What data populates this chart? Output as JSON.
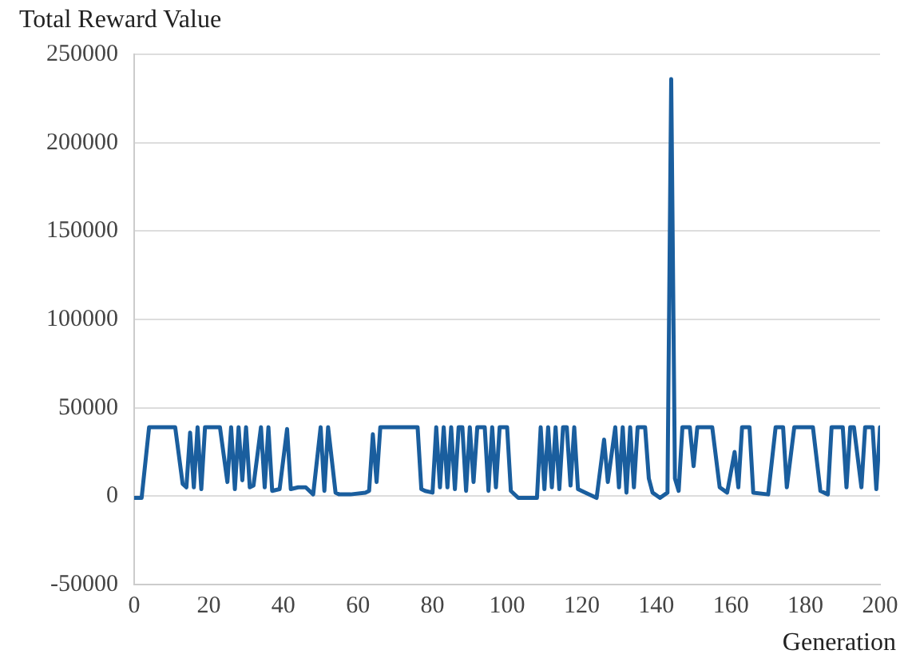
{
  "chart_data": {
    "type": "line",
    "xlabel": "Generation",
    "ylabel": "Total Reward Value",
    "x": [
      0,
      2,
      4,
      11,
      13,
      14,
      15,
      16,
      17,
      18,
      19,
      23,
      25,
      26,
      27,
      28,
      29,
      30,
      31,
      32,
      34,
      35,
      36,
      37,
      39,
      41,
      42,
      44,
      46,
      48,
      50,
      51,
      52,
      54,
      55,
      58,
      62,
      63,
      64,
      65,
      66,
      76,
      77,
      78,
      80,
      81,
      82,
      83,
      84,
      85,
      86,
      87,
      88,
      89,
      90,
      91,
      92,
      94,
      95,
      96,
      97,
      98,
      100,
      101,
      103,
      108,
      109,
      110,
      111,
      112,
      113,
      114,
      115,
      116,
      117,
      118,
      119,
      121,
      124,
      126,
      127,
      129,
      130,
      131,
      132,
      133,
      134,
      135,
      137,
      138,
      139,
      141,
      143,
      144,
      145,
      146,
      147,
      149,
      150,
      151,
      155,
      157,
      159,
      161,
      162,
      163,
      165,
      166,
      170,
      172,
      174,
      175,
      177,
      182,
      184,
      186,
      187,
      190,
      191,
      192,
      193,
      195,
      196,
      198,
      199,
      200
    ],
    "series": [
      {
        "color": "#1a5e9e",
        "values": [
          -1000,
          -1000,
          39000,
          39000,
          7000,
          5000,
          36000,
          5000,
          39000,
          4000,
          39000,
          39000,
          8000,
          39000,
          4000,
          39000,
          9000,
          39000,
          5000,
          6000,
          39000,
          5000,
          39000,
          3000,
          4000,
          38000,
          4000,
          5000,
          5000,
          1000,
          39000,
          3000,
          39000,
          2000,
          1000,
          1000,
          2000,
          3000,
          35000,
          8000,
          39000,
          39000,
          4000,
          3000,
          2000,
          39000,
          5000,
          39000,
          5000,
          39000,
          4000,
          39000,
          39000,
          3000,
          39000,
          8000,
          39000,
          39000,
          3000,
          39000,
          5000,
          39000,
          39000,
          3000,
          -1000,
          -1000,
          39000,
          4000,
          39000,
          5000,
          39000,
          4000,
          39000,
          39000,
          6000,
          39000,
          4000,
          2000,
          -1000,
          32000,
          8000,
          39000,
          5000,
          39000,
          2000,
          39000,
          5000,
          39000,
          39000,
          10000,
          2000,
          -1000,
          2000,
          236000,
          10000,
          3000,
          39000,
          39000,
          17000,
          39000,
          39000,
          5000,
          2000,
          25000,
          5000,
          39000,
          39000,
          2000,
          1000,
          39000,
          39000,
          5000,
          39000,
          39000,
          3000,
          1000,
          39000,
          39000,
          5000,
          39000,
          39000,
          5000,
          39000,
          39000,
          4000,
          39000
        ]
      }
    ],
    "xlim": [
      0,
      200
    ],
    "xticks": [
      0,
      20,
      40,
      60,
      80,
      100,
      120,
      140,
      160,
      180,
      200
    ],
    "ylim": [
      -50000,
      250000
    ],
    "yticks": [
      -50000,
      0,
      50000,
      100000,
      150000,
      200000,
      250000
    ],
    "grid": "y",
    "legend": false,
    "marker": "none",
    "line_style": "solid"
  }
}
